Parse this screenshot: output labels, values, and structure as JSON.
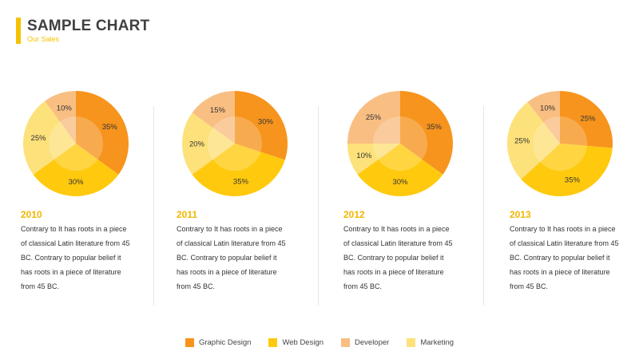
{
  "header": {
    "title": "SAMPLE CHART",
    "subtitle": "Our Sales"
  },
  "colors": {
    "accent": "#f5c200",
    "graphic_design": "#f7941d",
    "web_design": "#ffc90e",
    "developer": "#f9be82",
    "marketing": "#fde17a",
    "year_text": "#f2b600"
  },
  "chart_data": [
    {
      "type": "pie",
      "label": "2010",
      "categories": [
        "Graphic Design",
        "Web Design",
        "Marketing",
        "Developer"
      ],
      "values": [
        35,
        30,
        25,
        10
      ],
      "labels": [
        "35%",
        "30%",
        "25%",
        "10%"
      ],
      "description": "Contrary to It has roots in a piece of classical Latin literature from 45 BC. Contrary to popular belief it has roots in a piece of literature from 45 BC."
    },
    {
      "type": "pie",
      "label": "2011",
      "categories": [
        "Graphic Design",
        "Web Design",
        "Marketing",
        "Developer"
      ],
      "values": [
        30,
        35,
        20,
        15
      ],
      "labels": [
        "30%",
        "35%",
        "20%",
        "15%"
      ],
      "description": "Contrary to It has roots in a piece of classical Latin literature from 45 BC. Contrary to popular belief it has roots in a piece of literature from 45 BC."
    },
    {
      "type": "pie",
      "label": "2012",
      "categories": [
        "Graphic Design",
        "Web Design",
        "Marketing",
        "Developer"
      ],
      "values": [
        35,
        30,
        10,
        25
      ],
      "labels": [
        "35%",
        "30%",
        "10%",
        "25%"
      ],
      "description": "Contrary to It has roots in a piece of classical Latin literature from 45 BC. Contrary to popular belief it has roots in a piece of literature from 45 BC."
    },
    {
      "type": "pie",
      "label": "2013",
      "categories": [
        "Graphic Design",
        "Web Design",
        "Marketing",
        "Developer"
      ],
      "values": [
        25,
        35,
        25,
        10
      ],
      "labels": [
        "25%",
        "35%",
        "25%",
        "10%"
      ],
      "description": "Contrary to It has roots in a piece of classical Latin literature from 45 BC. Contrary to popular belief it has roots in a piece of literature from 45 BC."
    }
  ],
  "legend": {
    "placement": "bottom-center",
    "items": [
      {
        "label": "Graphic Design",
        "color": "#f7941d"
      },
      {
        "label": "Web Design",
        "color": "#ffc90e"
      },
      {
        "label": "Developer",
        "color": "#f9be82"
      },
      {
        "label": "Marketing",
        "color": "#fde17a"
      }
    ]
  }
}
